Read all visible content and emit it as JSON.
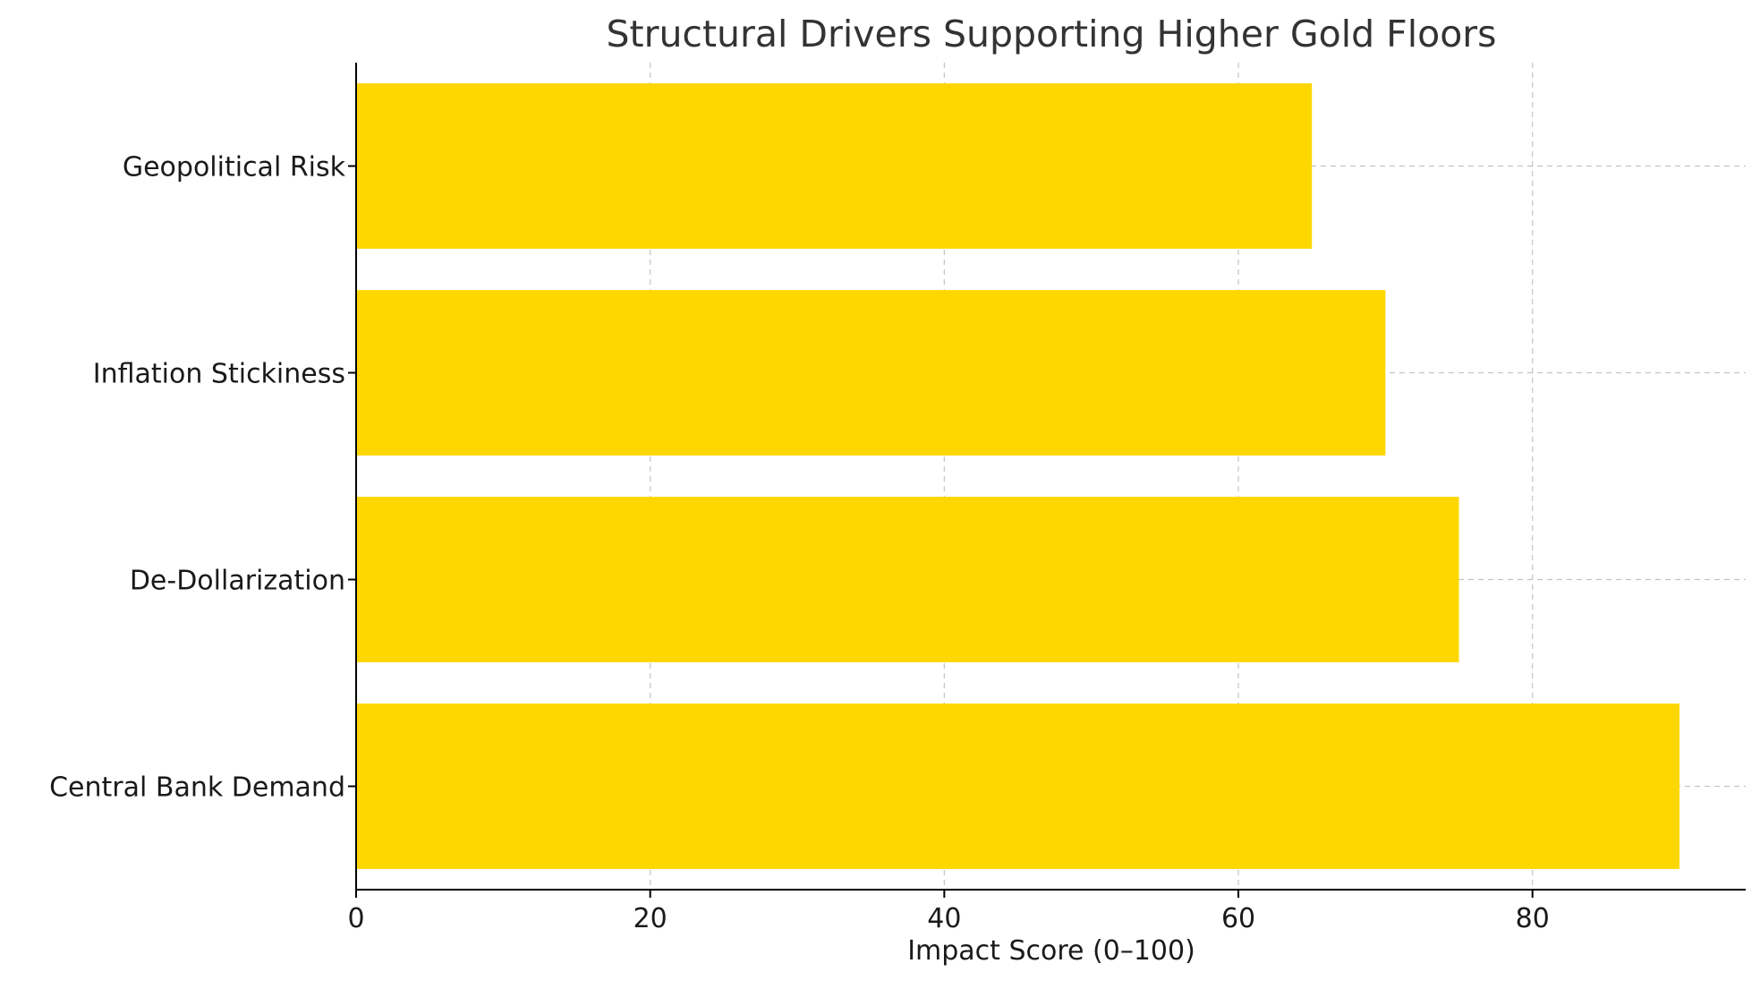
{
  "chart_data": {
    "type": "bar",
    "orientation": "horizontal",
    "title": "Structural Drivers Supporting Higher Gold Floors",
    "xlabel": "Impact Score (0–100)",
    "ylabel": "",
    "categories": [
      "Central Bank Demand",
      "De-Dollarization",
      "Inflation Stickiness",
      "Geopolitical Risk"
    ],
    "values": [
      90,
      75,
      70,
      65
    ],
    "xlim": [
      0,
      94.5
    ],
    "xticks": [
      0,
      20,
      40,
      60,
      80
    ],
    "xtick_labels": [
      "0",
      "20",
      "40",
      "60",
      "80"
    ],
    "grid": true,
    "bar_color": "#FFD700"
  }
}
